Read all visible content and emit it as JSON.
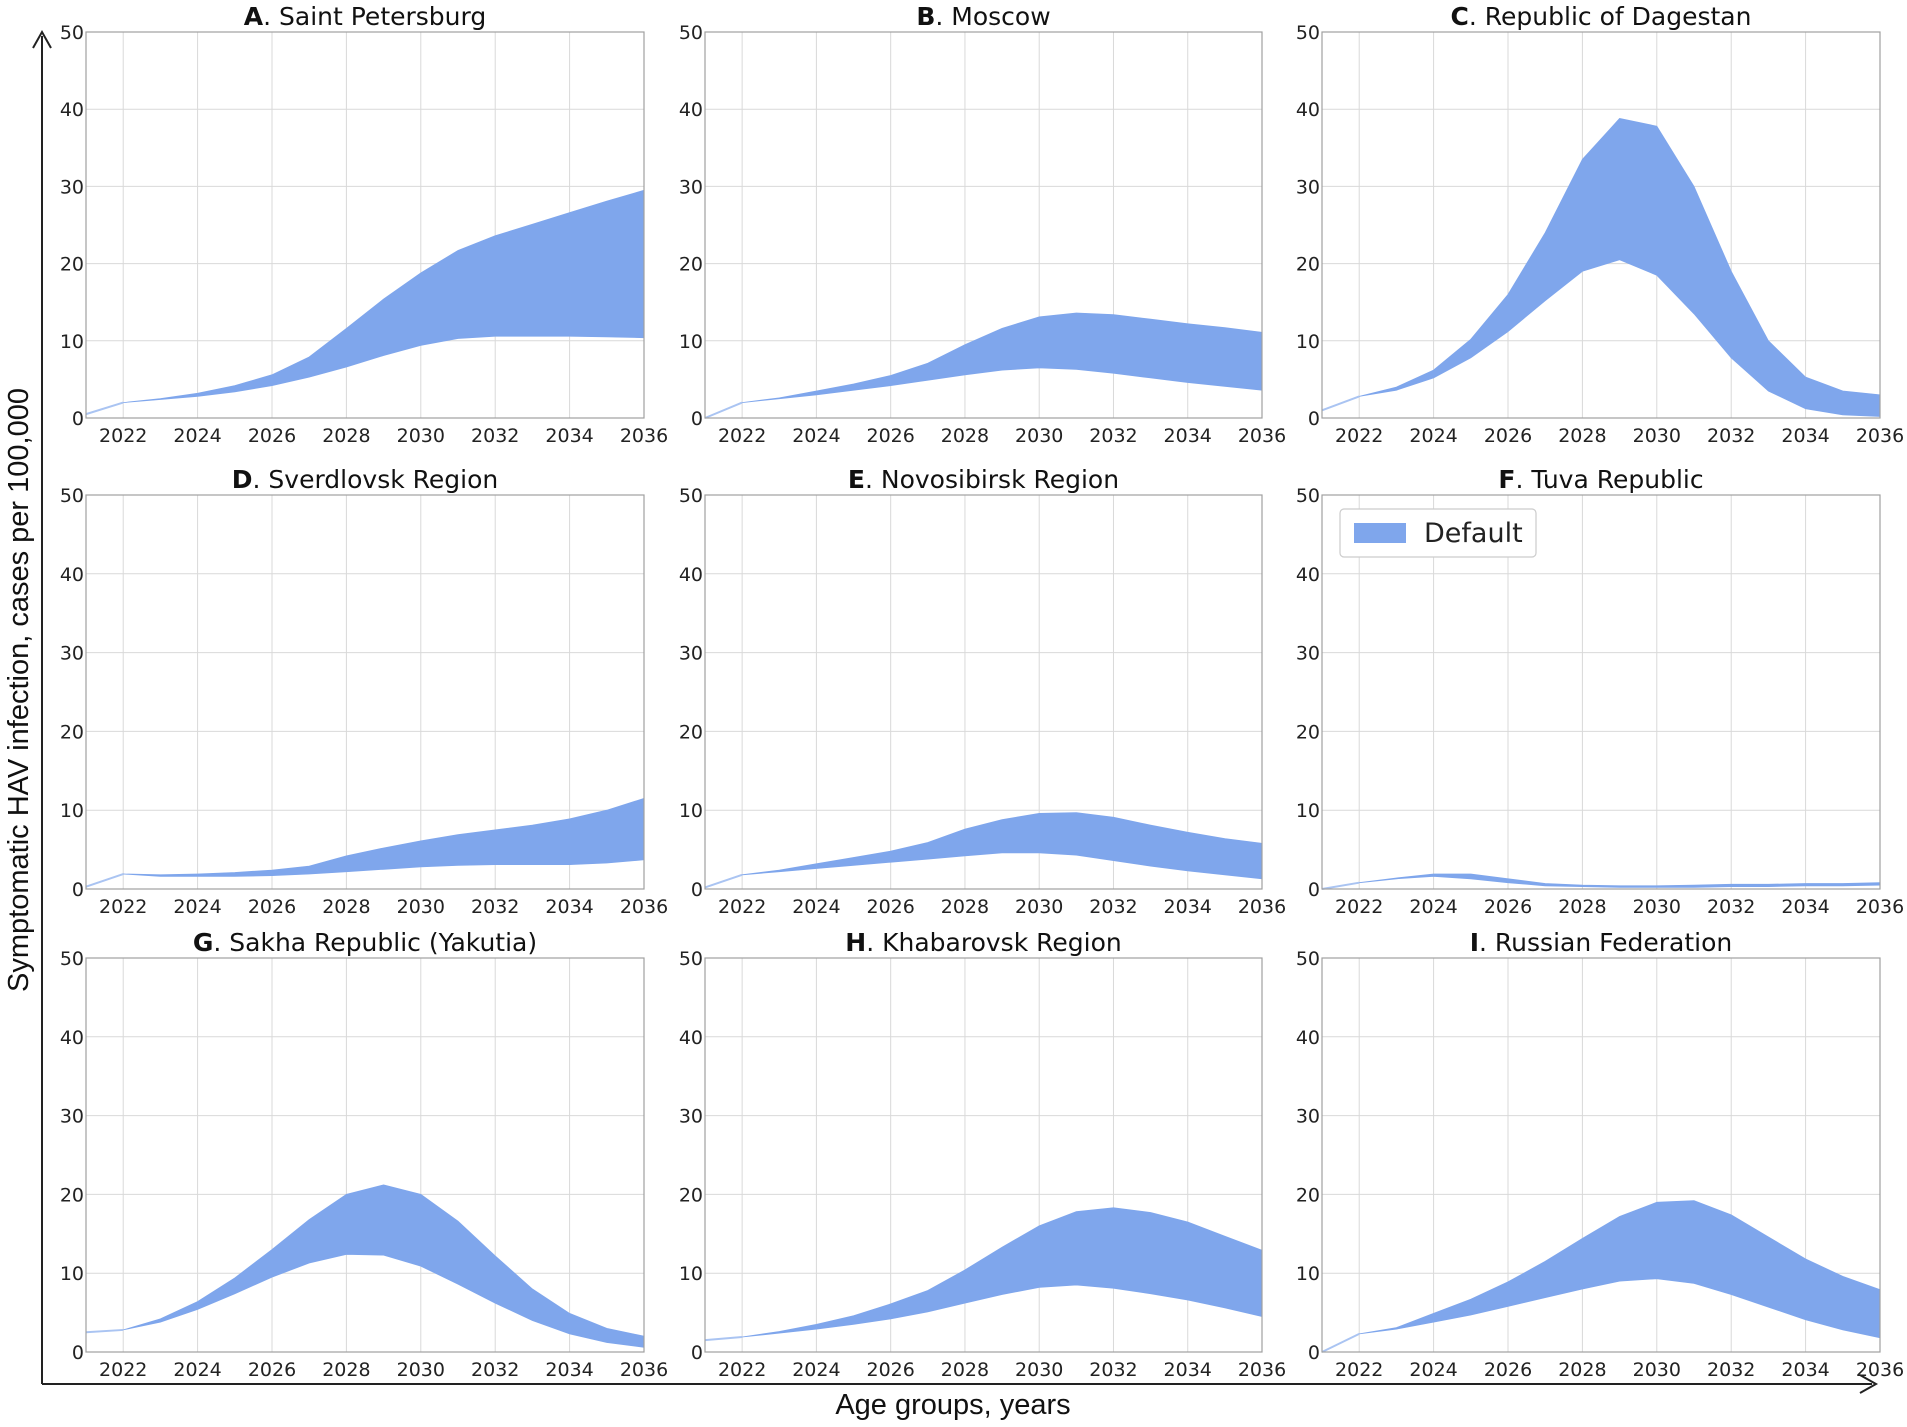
{
  "chart_data": {
    "type": "area",
    "ylabel": "Symptomatic HAV infection, cases per 100,000",
    "xlabel": "Age groups, years",
    "x": [
      2021,
      2022,
      2023,
      2024,
      2025,
      2026,
      2027,
      2028,
      2029,
      2030,
      2031,
      2032,
      2033,
      2034,
      2035,
      2036
    ],
    "xlim": [
      2021,
      2036
    ],
    "ylim": [
      0,
      50
    ],
    "xticks": [
      "2022",
      "2024",
      "2026",
      "2028",
      "2030",
      "2032",
      "2034",
      "2036"
    ],
    "yticks": [
      "0",
      "10",
      "20",
      "30",
      "40",
      "50"
    ],
    "grid": true,
    "colors": {
      "band": "#7fa6ec",
      "edge": "#aac4f2",
      "grid": "#d9d9d9",
      "frame": "#a0a0a0",
      "axis": "#222222"
    },
    "legend": {
      "label": "Default",
      "panel": "F",
      "position": "upper-left"
    },
    "panels": [
      {
        "letter": "A",
        "name": ". Saint Petersburg",
        "lower": [
          0.5,
          2.0,
          2.4,
          2.8,
          3.4,
          4.2,
          5.3,
          6.6,
          8.1,
          9.4,
          10.3,
          10.6,
          10.6,
          10.6,
          10.5,
          10.4
        ],
        "upper": [
          0.5,
          2.0,
          2.5,
          3.2,
          4.2,
          5.6,
          7.9,
          11.6,
          15.4,
          18.8,
          21.7,
          23.6,
          25.1,
          26.6,
          28.1,
          29.5
        ]
      },
      {
        "letter": "B",
        "name": ". Moscow",
        "lower": [
          0.0,
          2.0,
          2.5,
          3.0,
          3.6,
          4.2,
          4.9,
          5.6,
          6.2,
          6.5,
          6.3,
          5.8,
          5.2,
          4.6,
          4.1,
          3.6
        ],
        "upper": [
          0.0,
          2.0,
          2.6,
          3.5,
          4.4,
          5.5,
          7.1,
          9.5,
          11.6,
          13.1,
          13.6,
          13.4,
          12.8,
          12.2,
          11.7,
          11.1
        ]
      },
      {
        "letter": "C",
        "name": ". Republic of Dagestan",
        "lower": [
          1.0,
          2.8,
          3.6,
          5.2,
          7.8,
          11.2,
          15.2,
          19.0,
          20.5,
          18.5,
          13.5,
          7.8,
          3.5,
          1.2,
          0.4,
          0.2
        ],
        "upper": [
          1.0,
          2.8,
          4.0,
          6.2,
          10.2,
          16.0,
          24.0,
          33.5,
          38.8,
          37.8,
          30.0,
          19.0,
          10.0,
          5.3,
          3.5,
          3.0
        ]
      },
      {
        "letter": "D",
        "name": ". Sverdlovsk Region",
        "lower": [
          0.3,
          1.9,
          1.6,
          1.6,
          1.6,
          1.7,
          1.9,
          2.2,
          2.5,
          2.8,
          3.0,
          3.1,
          3.1,
          3.1,
          3.3,
          3.7
        ],
        "upper": [
          0.3,
          1.9,
          1.8,
          1.9,
          2.1,
          2.4,
          2.9,
          4.2,
          5.2,
          6.1,
          6.9,
          7.5,
          8.1,
          8.9,
          10.0,
          11.5
        ]
      },
      {
        "letter": "E",
        "name": ". Novosibirsk Region",
        "lower": [
          0.2,
          1.8,
          2.2,
          2.6,
          3.0,
          3.4,
          3.8,
          4.2,
          4.6,
          4.6,
          4.3,
          3.6,
          2.9,
          2.3,
          1.8,
          1.3
        ],
        "upper": [
          0.2,
          1.8,
          2.4,
          3.2,
          4.0,
          4.8,
          5.9,
          7.6,
          8.8,
          9.6,
          9.7,
          9.1,
          8.1,
          7.2,
          6.4,
          5.8
        ]
      },
      {
        "letter": "F",
        "name": ". Tuva Republic",
        "lower": [
          0.0,
          0.8,
          1.3,
          1.6,
          1.3,
          0.8,
          0.4,
          0.3,
          0.2,
          0.2,
          0.2,
          0.3,
          0.3,
          0.4,
          0.4,
          0.5
        ],
        "upper": [
          0.0,
          0.8,
          1.4,
          1.9,
          1.9,
          1.3,
          0.7,
          0.5,
          0.4,
          0.4,
          0.5,
          0.6,
          0.6,
          0.7,
          0.7,
          0.8
        ]
      },
      {
        "letter": "G",
        "name": ". Sakha Republic (Yakutia)",
        "lower": [
          2.5,
          2.8,
          3.8,
          5.4,
          7.4,
          9.5,
          11.3,
          12.4,
          12.3,
          10.9,
          8.6,
          6.2,
          4.0,
          2.3,
          1.2,
          0.6
        ],
        "upper": [
          2.5,
          2.8,
          4.2,
          6.4,
          9.4,
          13.0,
          16.8,
          20.0,
          21.2,
          20.0,
          16.6,
          12.2,
          8.0,
          4.9,
          3.0,
          2.0
        ]
      },
      {
        "letter": "H",
        "name": ". Khabarovsk Region",
        "lower": [
          1.5,
          1.9,
          2.4,
          2.9,
          3.5,
          4.2,
          5.1,
          6.2,
          7.3,
          8.2,
          8.5,
          8.1,
          7.4,
          6.6,
          5.6,
          4.5
        ],
        "upper": [
          1.5,
          1.9,
          2.6,
          3.5,
          4.6,
          6.1,
          7.8,
          10.4,
          13.3,
          16.0,
          17.8,
          18.3,
          17.7,
          16.5,
          14.7,
          12.9
        ]
      },
      {
        "letter": "I",
        "name": ". Russian Federation",
        "lower": [
          0.0,
          2.3,
          2.9,
          3.8,
          4.7,
          5.8,
          6.9,
          8.0,
          9.0,
          9.3,
          8.7,
          7.3,
          5.7,
          4.1,
          2.8,
          1.8
        ],
        "upper": [
          0.0,
          2.3,
          3.1,
          4.9,
          6.7,
          8.9,
          11.5,
          14.4,
          17.2,
          19.0,
          19.2,
          17.4,
          14.6,
          11.8,
          9.6,
          7.9
        ]
      }
    ]
  }
}
